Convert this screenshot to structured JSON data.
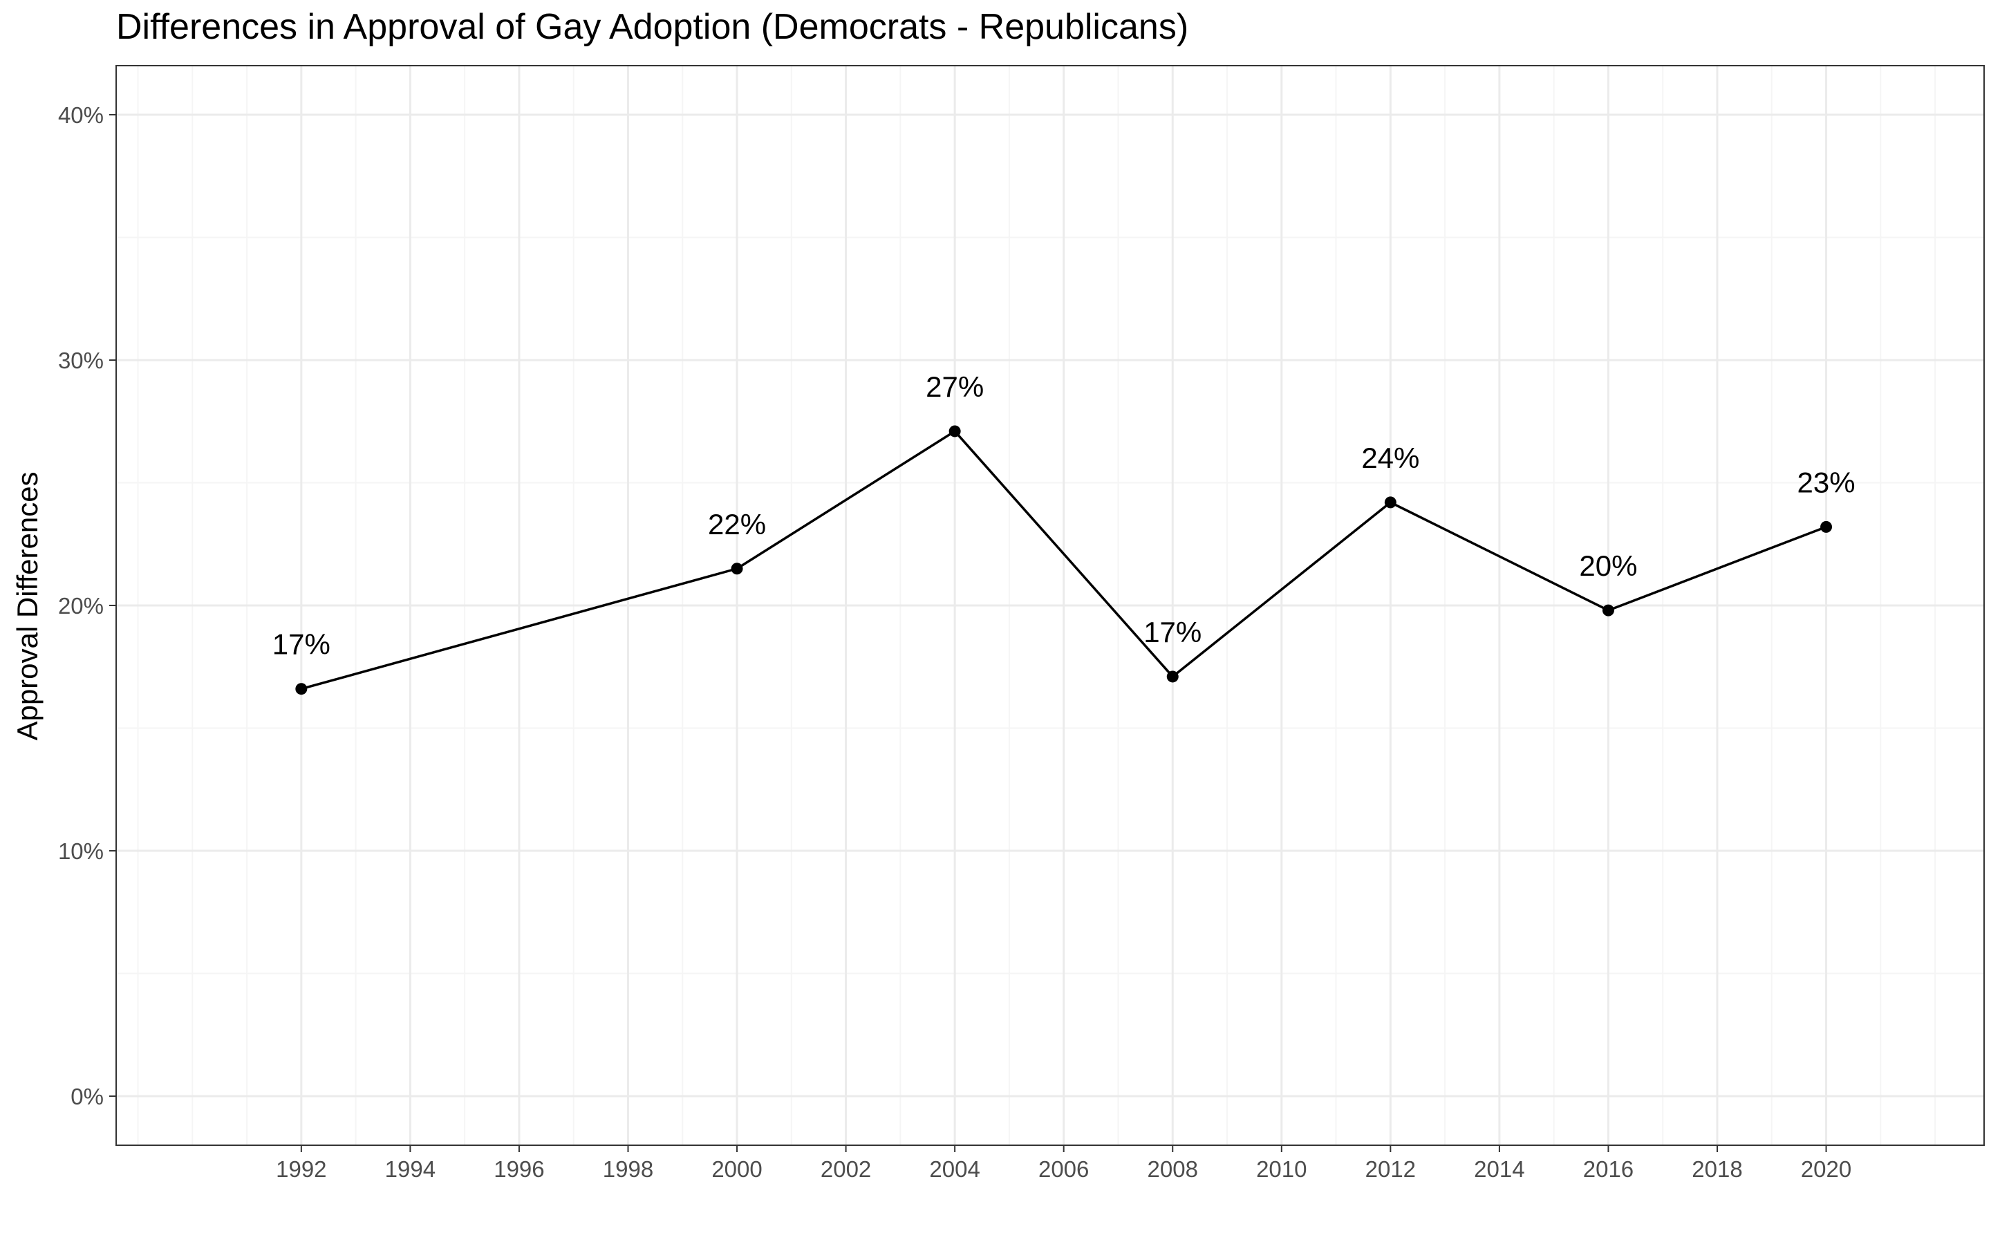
{
  "chart_data": {
    "type": "line",
    "title": "Differences in Approval of Gay Adoption (Democrats - Republicans)",
    "xlabel": "",
    "ylabel": "Approval Differences",
    "x": [
      1992,
      2000,
      2004,
      2008,
      2012,
      2016,
      2020
    ],
    "values": [
      0.166,
      0.215,
      0.271,
      0.171,
      0.242,
      0.198,
      0.232
    ],
    "data_labels": [
      "17%",
      "22%",
      "27%",
      "17%",
      "24%",
      "20%",
      "23%"
    ],
    "xlim": [
      1988.6,
      2022.9
    ],
    "ylim": [
      -0.02,
      0.42
    ],
    "x_ticks": [
      1992,
      1994,
      1996,
      1998,
      2000,
      2002,
      2004,
      2006,
      2008,
      2010,
      2012,
      2014,
      2016,
      2018,
      2020
    ],
    "x_tick_labels": [
      "1992",
      "1994",
      "1996",
      "1998",
      "2000",
      "2002",
      "2004",
      "2006",
      "2008",
      "2010",
      "2012",
      "2014",
      "2016",
      "2018",
      "2020"
    ],
    "y_ticks": [
      0,
      0.1,
      0.2,
      0.3,
      0.4
    ],
    "y_tick_labels": [
      "0%",
      "10%",
      "20%",
      "30%",
      "40%"
    ],
    "grid": true,
    "legend": "none",
    "colors": {
      "line": "#000000",
      "point": "#000000",
      "grid_major": "#ebebeb",
      "grid_minor": "#f5f5f5",
      "panel_border": "#333333",
      "tick_text": "#4d4d4d",
      "text": "#000000"
    }
  }
}
